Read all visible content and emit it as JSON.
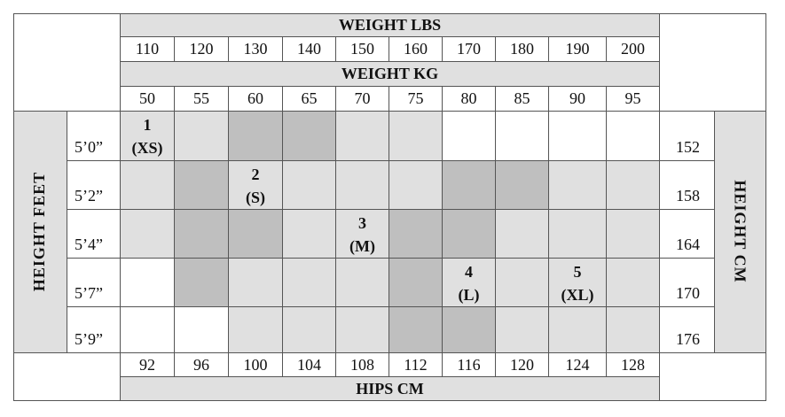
{
  "header": {
    "weight_lbs_title": "WEIGHT LBS",
    "weight_lbs": [
      110,
      120,
      130,
      140,
      150,
      160,
      170,
      180,
      190,
      200
    ],
    "weight_kg_title": "WEIGHT KG",
    "weight_kg": [
      50,
      55,
      60,
      65,
      70,
      75,
      80,
      85,
      90,
      95
    ]
  },
  "height_feet_title": "HEIGHT FEET",
  "height_feet": [
    "5’0”",
    "5’2”",
    "5’4”",
    "5’7”",
    "5’9”"
  ],
  "height_cm_title": "HEIGHT CM",
  "height_cm": [
    152,
    158,
    164,
    170,
    176
  ],
  "hips_cm": [
    92,
    96,
    100,
    104,
    108,
    112,
    116,
    120,
    124,
    128
  ],
  "hips_title": "HIPS CM",
  "sizes": [
    {
      "number": "1",
      "label": "(XS)"
    },
    {
      "number": "2",
      "label": "(S)"
    },
    {
      "number": "3",
      "label": "(M)"
    },
    {
      "number": "4",
      "label": "(L)"
    },
    {
      "number": "5",
      "label": "(XL)"
    }
  ]
}
